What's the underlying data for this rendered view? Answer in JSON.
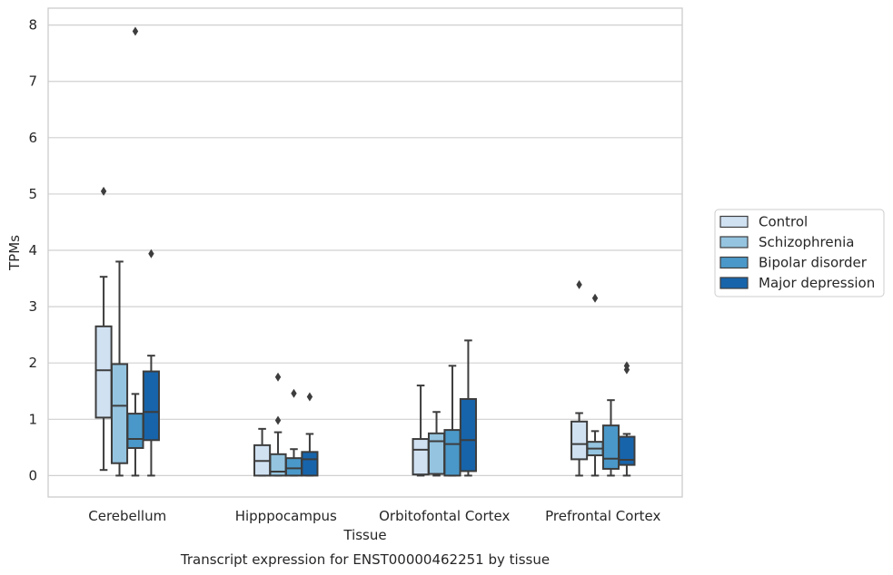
{
  "chart_data": {
    "type": "boxplot",
    "caption": "Transcript expression for ENST00000462251 by tissue",
    "xlabel": "Tissue",
    "ylabel": "TPMs",
    "ylim": [
      -0.38,
      8.3
    ],
    "yticks": [
      0,
      1,
      2,
      3,
      4,
      5,
      6,
      7,
      8
    ],
    "grid": true,
    "legend_position": "right",
    "categories": [
      "Cerebellum",
      "Hipppocampus",
      "Orbitofontal Cortex",
      "Prefrontal Cortex"
    ],
    "colors": {
      "Control": "#d0e1f2",
      "Schizophrenia": "#94c4df",
      "Bipolar disorder": "#4a98c9",
      "Major depression": "#1764ab"
    },
    "series": [
      {
        "name": "Control",
        "boxes": [
          {
            "whislo": 0.1,
            "q1": 1.03,
            "med": 1.87,
            "q3": 2.65,
            "whishi": 3.53,
            "fliers": [
              5.05
            ]
          },
          {
            "whislo": 0.0,
            "q1": 0.0,
            "med": 0.26,
            "q3": 0.54,
            "whishi": 0.83,
            "fliers": []
          },
          {
            "whislo": 0.0,
            "q1": 0.02,
            "med": 0.46,
            "q3": 0.65,
            "whishi": 1.6,
            "fliers": []
          },
          {
            "whislo": 0.0,
            "q1": 0.29,
            "med": 0.56,
            "q3": 0.96,
            "whishi": 1.11,
            "fliers": [
              3.39
            ]
          }
        ]
      },
      {
        "name": "Schizophrenia",
        "boxes": [
          {
            "whislo": 0.0,
            "q1": 0.22,
            "med": 1.24,
            "q3": 1.98,
            "whishi": 3.8,
            "fliers": []
          },
          {
            "whislo": 0.0,
            "q1": 0.0,
            "med": 0.07,
            "q3": 0.38,
            "whishi": 0.77,
            "fliers": [
              0.98,
              1.75
            ]
          },
          {
            "whislo": 0.0,
            "q1": 0.03,
            "med": 0.61,
            "q3": 0.75,
            "whishi": 1.13,
            "fliers": []
          },
          {
            "whislo": 0.0,
            "q1": 0.36,
            "med": 0.48,
            "q3": 0.6,
            "whishi": 0.79,
            "fliers": [
              3.15
            ]
          }
        ]
      },
      {
        "name": "Bipolar disorder",
        "boxes": [
          {
            "whislo": 0.0,
            "q1": 0.49,
            "med": 0.65,
            "q3": 1.1,
            "whishi": 1.45,
            "fliers": [
              7.89
            ]
          },
          {
            "whislo": 0.0,
            "q1": 0.0,
            "med": 0.13,
            "q3": 0.31,
            "whishi": 0.47,
            "fliers": [
              1.46
            ]
          },
          {
            "whislo": 0.0,
            "q1": 0.0,
            "med": 0.56,
            "q3": 0.81,
            "whishi": 1.95,
            "fliers": []
          },
          {
            "whislo": 0.0,
            "q1": 0.12,
            "med": 0.3,
            "q3": 0.89,
            "whishi": 1.34,
            "fliers": []
          }
        ]
      },
      {
        "name": "Major depression",
        "boxes": [
          {
            "whislo": 0.0,
            "q1": 0.63,
            "med": 1.13,
            "q3": 1.85,
            "whishi": 2.13,
            "fliers": [
              3.94
            ]
          },
          {
            "whislo": 0.0,
            "q1": 0.0,
            "med": 0.29,
            "q3": 0.42,
            "whishi": 0.74,
            "fliers": [
              1.4
            ]
          },
          {
            "whislo": 0.0,
            "q1": 0.08,
            "med": 0.63,
            "q3": 1.36,
            "whishi": 2.4,
            "fliers": []
          },
          {
            "whislo": 0.0,
            "q1": 0.19,
            "med": 0.28,
            "q3": 0.69,
            "whishi": 0.74,
            "fliers": [
              1.88,
              1.95
            ]
          }
        ]
      }
    ]
  }
}
